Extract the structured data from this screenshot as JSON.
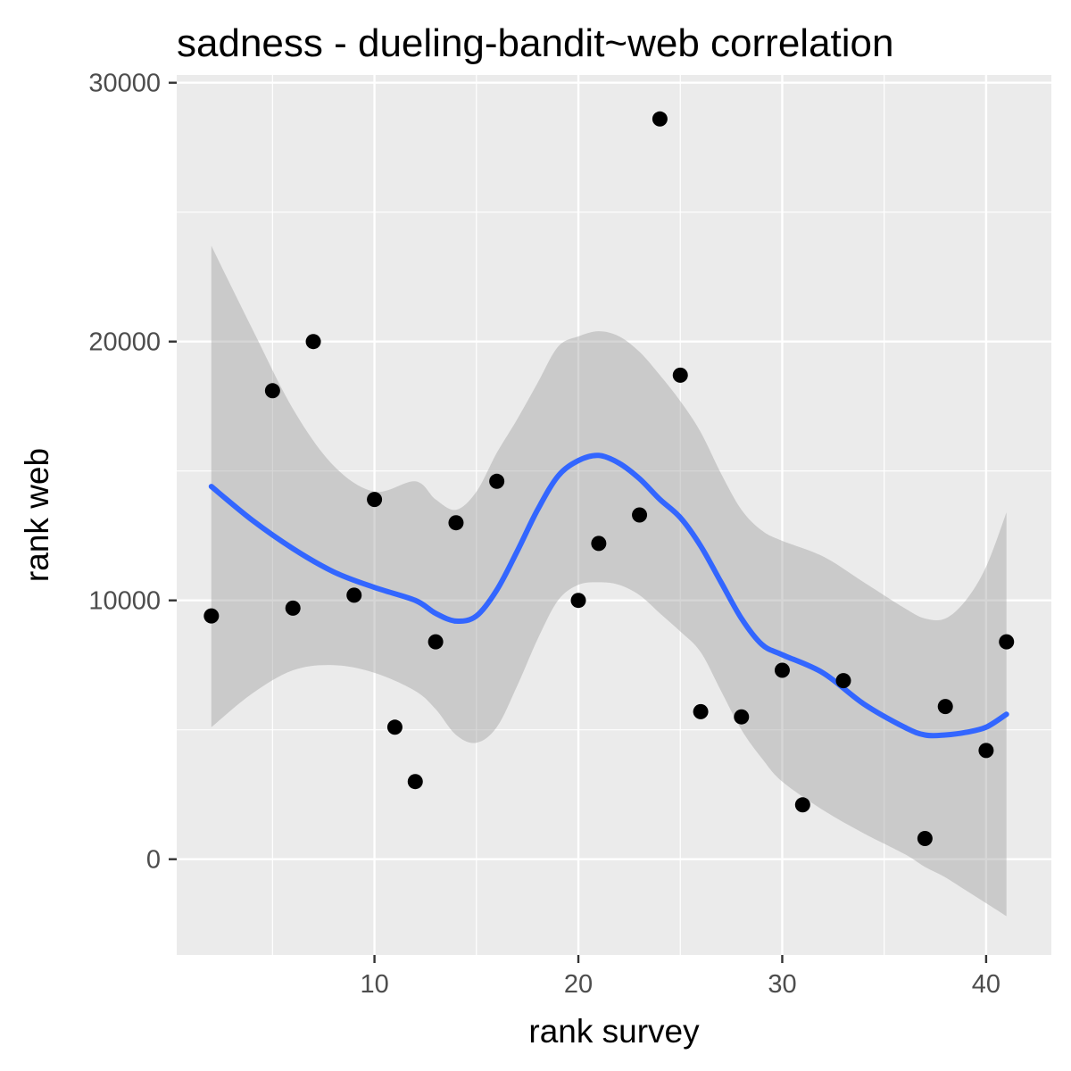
{
  "chart_data": {
    "type": "scatter",
    "title": "sadness - dueling-bandit~web correlation",
    "xlabel": "rank survey",
    "ylabel": "rank web",
    "xlim": [
      0.3,
      43.2
    ],
    "ylim": [
      -3700,
      30300
    ],
    "x_ticks": [
      10,
      20,
      30,
      40
    ],
    "y_ticks": [
      0,
      10000,
      20000,
      30000
    ],
    "x_tick_labels": [
      "10",
      "20",
      "30",
      "40"
    ],
    "y_tick_labels": [
      "0",
      "10000",
      "20000",
      "30000"
    ],
    "grid": true,
    "legend": "none",
    "colors": {
      "panel_background": "#ebebeb",
      "grid_line": "#ffffff",
      "point": "#000000",
      "smooth_line": "#3366ff",
      "confidence_band": "#999999",
      "tick_label": "#4d4d4d",
      "tick_mark": "#333333"
    },
    "points": [
      {
        "x": 2,
        "y": 9400
      },
      {
        "x": 5,
        "y": 18100
      },
      {
        "x": 6,
        "y": 9700
      },
      {
        "x": 7,
        "y": 20000
      },
      {
        "x": 9,
        "y": 10200
      },
      {
        "x": 10,
        "y": 13900
      },
      {
        "x": 11,
        "y": 5100
      },
      {
        "x": 12,
        "y": 3000
      },
      {
        "x": 13,
        "y": 8400
      },
      {
        "x": 14,
        "y": 13000
      },
      {
        "x": 16,
        "y": 14600
      },
      {
        "x": 20,
        "y": 10000
      },
      {
        "x": 21,
        "y": 12200
      },
      {
        "x": 23,
        "y": 13300
      },
      {
        "x": 24,
        "y": 28600
      },
      {
        "x": 25,
        "y": 18700
      },
      {
        "x": 26,
        "y": 5700
      },
      {
        "x": 28,
        "y": 5500
      },
      {
        "x": 30,
        "y": 7300
      },
      {
        "x": 31,
        "y": 2100
      },
      {
        "x": 33,
        "y": 6900
      },
      {
        "x": 37,
        "y": 800
      },
      {
        "x": 38,
        "y": 5900
      },
      {
        "x": 40,
        "y": 4200
      },
      {
        "x": 41,
        "y": 8400
      }
    ],
    "smooth": {
      "x": [
        2,
        4,
        6,
        8,
        10,
        12,
        13,
        14,
        15,
        16,
        17,
        18,
        19,
        20,
        21,
        22,
        23,
        24,
        25,
        26,
        27,
        28,
        29,
        30,
        32,
        34,
        36,
        37,
        38,
        39,
        40,
        41
      ],
      "y": [
        14400,
        13100,
        12000,
        11100,
        10500,
        10000,
        9500,
        9200,
        9400,
        10400,
        11900,
        13500,
        14800,
        15400,
        15600,
        15300,
        14700,
        13900,
        13200,
        12100,
        10700,
        9300,
        8300,
        7900,
        7200,
        6000,
        5100,
        4800,
        4800,
        4900,
        5100,
        5600
      ],
      "lower": [
        5100,
        6400,
        7300,
        7500,
        7200,
        6500,
        5800,
        4800,
        4500,
        5100,
        6700,
        8500,
        10000,
        10600,
        10700,
        10600,
        10200,
        9500,
        8800,
        8000,
        6500,
        5000,
        3900,
        3000,
        1900,
        1000,
        200,
        -300,
        -700,
        -1200,
        -1700,
        -2200
      ],
      "upper": [
        23700,
        20500,
        17400,
        15200,
        14200,
        14600,
        13900,
        13500,
        14200,
        15700,
        17000,
        18400,
        19800,
        20200,
        20400,
        20200,
        19600,
        18700,
        17700,
        16500,
        14900,
        13500,
        12700,
        12300,
        11700,
        10700,
        9700,
        9300,
        9300,
        10000,
        11300,
        13400
      ]
    }
  }
}
